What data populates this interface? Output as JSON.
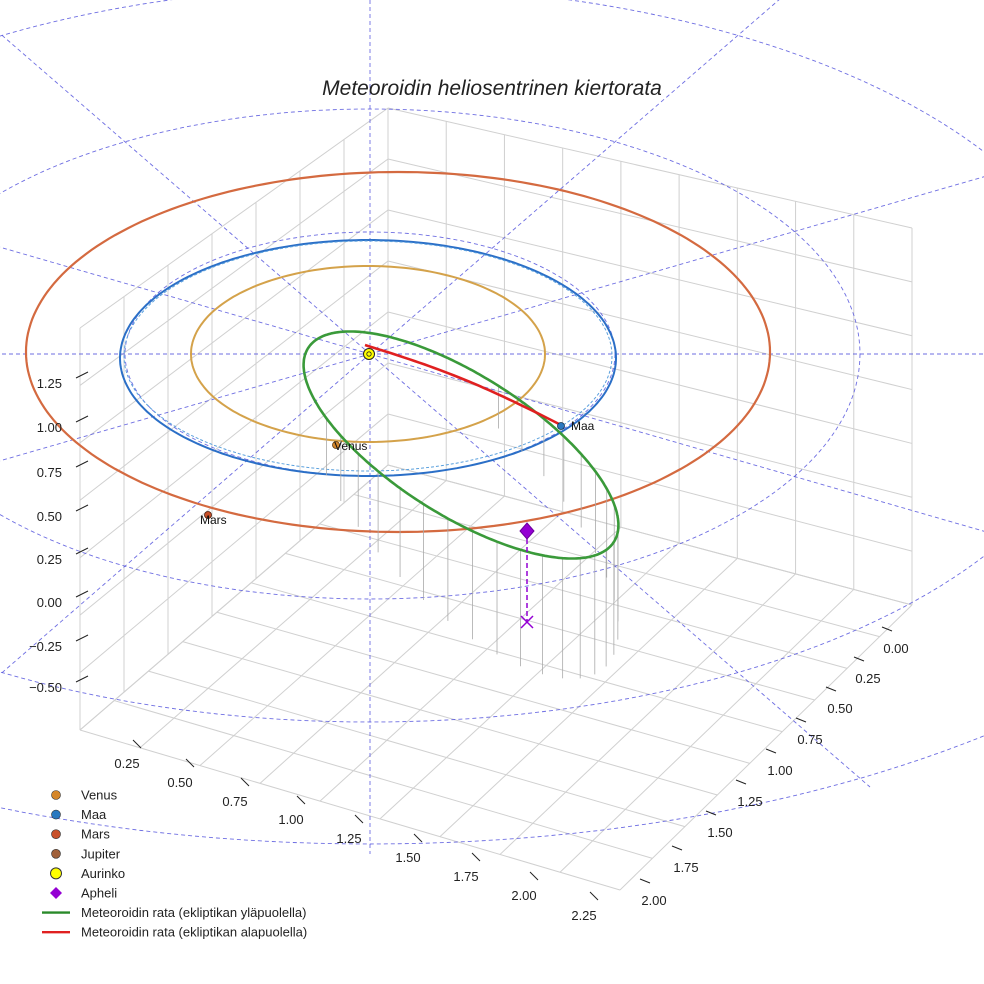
{
  "chart_data": {
    "type": "line",
    "projection": "3d",
    "title": "Meteoroidin heliosentrinen kiertorata",
    "xlabel": "",
    "ylabel": "",
    "zlabel": "",
    "x_ticks": [
      "0.25",
      "0.50",
      "0.75",
      "1.00",
      "1.25",
      "1.50",
      "1.75",
      "2.00",
      "2.25"
    ],
    "y_ticks": [
      "0.00",
      "0.25",
      "0.50",
      "0.75",
      "1.00",
      "1.25",
      "1.50",
      "1.75",
      "2.00"
    ],
    "z_ticks": [
      "1.25",
      "1.00",
      "0.75",
      "0.50",
      "0.25",
      "0.00",
      "−0.25",
      "−0.50"
    ],
    "grid": true,
    "legend_position": "bottom-left",
    "colors": {
      "venus": "#d4a24a",
      "earth": "#2b6fc7",
      "mars": "#d46a40",
      "jupiter": "#8b4a2a",
      "sun": "#ffff00",
      "aphelion": "#9400d3",
      "above": "#3a9a3a",
      "below": "#e02020",
      "guide": "#5555dd"
    },
    "planet_labels": [
      "Venus",
      "Maa",
      "Mars"
    ],
    "legend": [
      {
        "label": "Venus",
        "marker": "dot",
        "color": "#d4862a"
      },
      {
        "label": "Maa",
        "marker": "dot",
        "color": "#2a78c0"
      },
      {
        "label": "Mars",
        "marker": "dot",
        "color": "#c8502a"
      },
      {
        "label": "Jupiter",
        "marker": "dot",
        "color": "#a0603a"
      },
      {
        "label": "Aurinko",
        "marker": "sun",
        "color": "#ffff00"
      },
      {
        "label": "Apheli",
        "marker": "diamond",
        "color": "#9400d3"
      },
      {
        "label": "Meteoroidin rata (ekliptikan yläpuolella)",
        "marker": "line",
        "color": "#2a8a2a"
      },
      {
        "label": "Meteoroidin rata (ekliptikan alapuolella)",
        "marker": "line",
        "color": "#e02020"
      }
    ]
  }
}
